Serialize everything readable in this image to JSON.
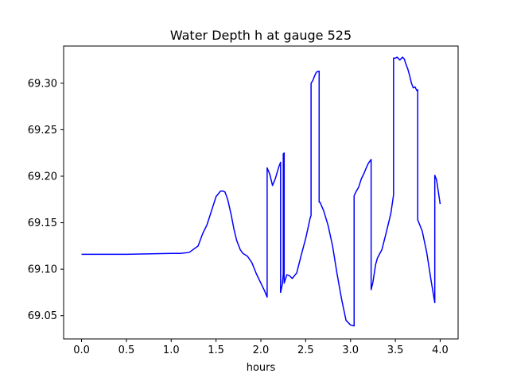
{
  "chart_data": {
    "type": "line",
    "title": "Water Depth h at gauge 525",
    "xlabel": "hours",
    "ylabel": "",
    "xlim": [
      -0.2,
      4.2
    ],
    "ylim": [
      69.025,
      69.34
    ],
    "grid": false,
    "xticks": [
      0.0,
      0.5,
      1.0,
      1.5,
      2.0,
      2.5,
      3.0,
      3.5,
      4.0
    ],
    "xtick_labels": [
      "0.0",
      "0.5",
      "1.0",
      "1.5",
      "2.0",
      "2.5",
      "3.0",
      "3.5",
      "4.0"
    ],
    "yticks": [
      69.05,
      69.1,
      69.15,
      69.2,
      69.25,
      69.3
    ],
    "ytick_labels": [
      "69.05",
      "69.10",
      "69.15",
      "69.20",
      "69.25",
      "69.30"
    ],
    "series": [
      {
        "color": "#0000ff",
        "x": [
          0.0,
          0.5,
          1.0,
          1.1,
          1.2,
          1.3,
          1.35,
          1.4,
          1.45,
          1.5,
          1.55,
          1.58,
          1.6,
          1.63,
          1.67,
          1.7,
          1.73,
          1.77,
          1.8,
          1.85,
          1.9,
          1.95,
          2.0,
          2.04,
          2.07,
          2.07,
          2.1,
          2.13,
          2.16,
          2.2,
          2.22,
          2.22,
          2.24,
          2.25,
          2.25,
          2.26,
          2.26,
          2.29,
          2.32,
          2.35,
          2.4,
          2.45,
          2.5,
          2.55,
          2.56,
          2.56,
          2.58,
          2.6,
          2.62,
          2.65,
          2.65,
          2.66,
          2.7,
          2.75,
          2.8,
          2.85,
          2.9,
          2.95,
          3.0,
          3.04,
          3.04,
          3.06,
          3.09,
          3.12,
          3.15,
          3.18,
          3.2,
          3.23,
          3.23,
          3.25,
          3.28,
          3.3,
          3.35,
          3.4,
          3.45,
          3.48,
          3.48,
          3.5,
          3.52,
          3.55,
          3.58,
          3.6,
          3.62,
          3.64,
          3.66,
          3.68,
          3.7,
          3.72,
          3.74,
          3.75,
          3.75,
          3.8,
          3.85,
          3.9,
          3.94,
          3.94,
          3.96,
          4.0
        ],
        "y": [
          69.116,
          69.116,
          69.117,
          69.117,
          69.118,
          69.125,
          69.138,
          69.148,
          69.163,
          69.178,
          69.184,
          69.184,
          69.183,
          69.175,
          69.158,
          69.143,
          69.131,
          69.121,
          69.117,
          69.114,
          69.107,
          69.095,
          69.085,
          69.077,
          69.07,
          69.209,
          69.202,
          69.19,
          69.197,
          69.21,
          69.215,
          69.075,
          69.084,
          69.095,
          69.224,
          69.225,
          69.085,
          69.094,
          69.093,
          69.09,
          69.096,
          69.115,
          69.133,
          69.155,
          69.158,
          69.3,
          69.303,
          69.308,
          69.312,
          69.313,
          69.172,
          69.172,
          69.163,
          69.147,
          69.125,
          69.095,
          69.068,
          69.045,
          69.04,
          69.039,
          69.179,
          69.183,
          69.188,
          69.197,
          69.203,
          69.21,
          69.214,
          69.218,
          69.078,
          69.086,
          69.105,
          69.112,
          69.121,
          69.14,
          69.16,
          69.18,
          69.327,
          69.327,
          69.328,
          69.325,
          69.328,
          69.326,
          69.32,
          69.315,
          69.308,
          69.3,
          69.295,
          69.296,
          69.292,
          69.293,
          69.153,
          69.141,
          69.118,
          69.087,
          69.064,
          69.201,
          69.196,
          69.17
        ]
      }
    ]
  }
}
